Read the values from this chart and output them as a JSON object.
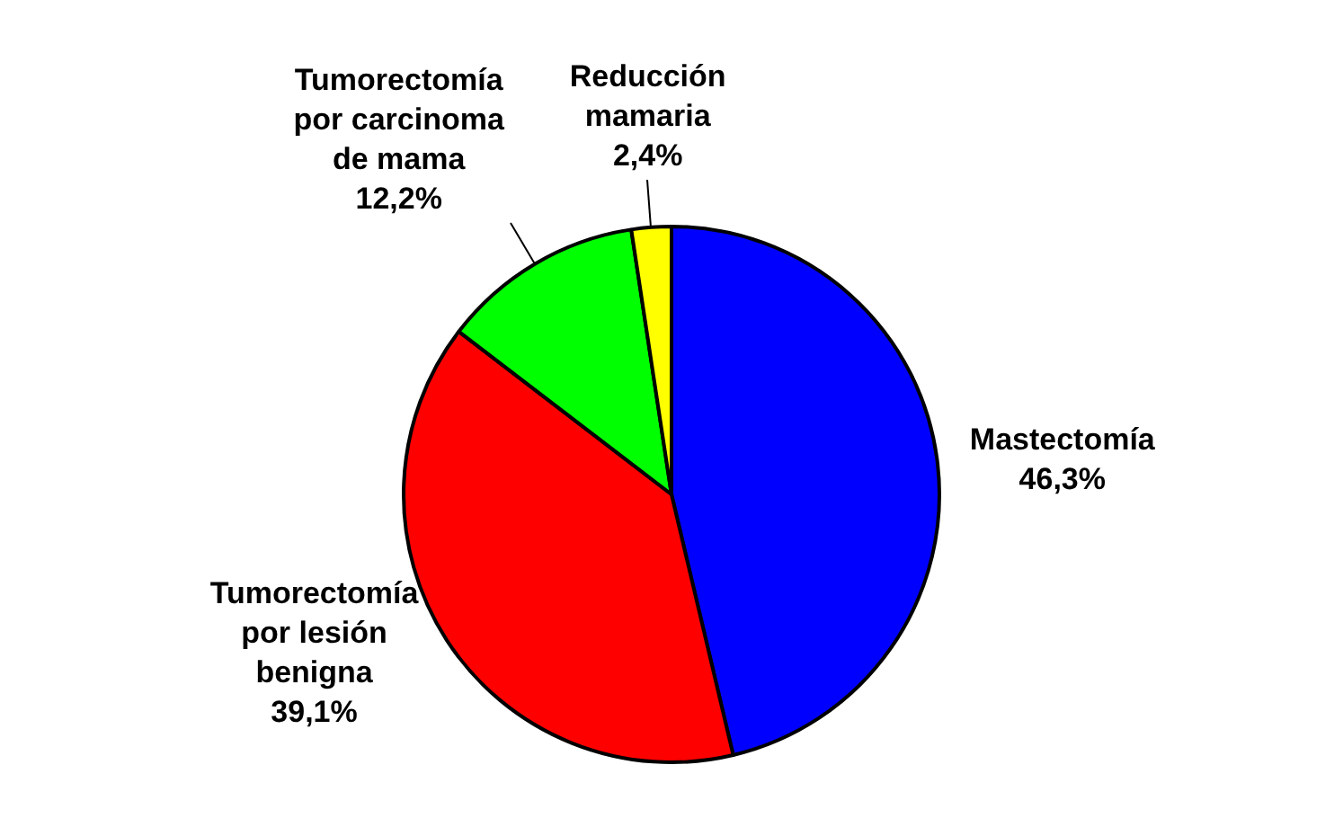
{
  "chart_data": {
    "type": "pie",
    "categories": [
      "Mastectomía",
      "Tumorectomía por lesión benigna",
      "Tumorectomía por carcinoma de mama",
      "Reducción mamaria"
    ],
    "values": [
      46.3,
      39.1,
      12.2,
      2.4
    ],
    "colors": [
      "#0000ff",
      "#ff0000",
      "#00ff00",
      "#ffff00"
    ],
    "value_labels": [
      "46,3%",
      "39,1%",
      "12,2%",
      "2,4%"
    ]
  }
}
